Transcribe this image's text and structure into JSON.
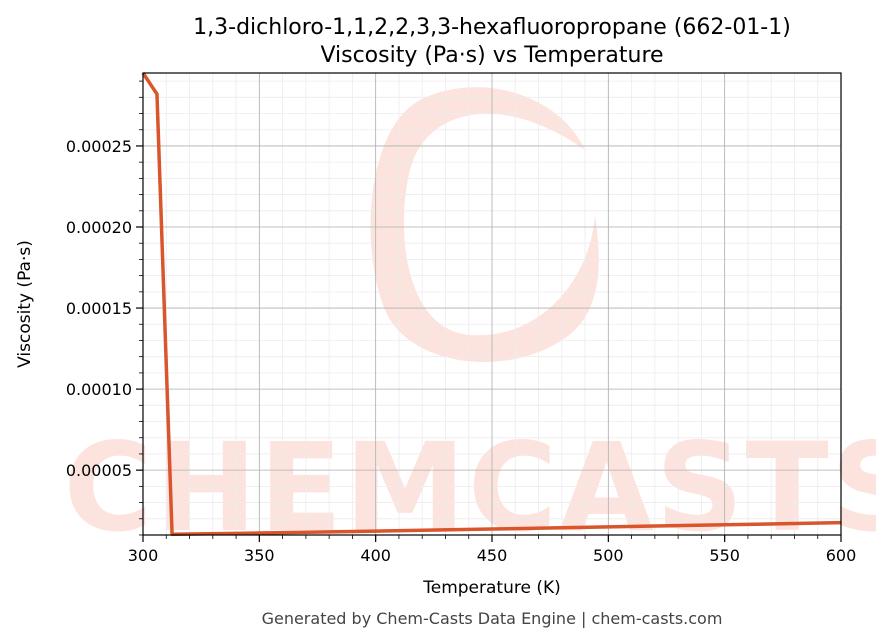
{
  "chart_data": {
    "type": "line",
    "title": "1,3-dichloro-1,1,2,2,3,3-hexafluoropropane (662-01-1)",
    "subtitle": "Viscosity (Pa·s) vs Temperature",
    "xlabel": "Temperature (K)",
    "ylabel": "Viscosity (Pa·s)",
    "xlim": [
      300,
      600
    ],
    "ylim": [
      1e-05,
      0.000295
    ],
    "x_ticks": [
      300,
      350,
      400,
      450,
      500,
      550,
      600
    ],
    "x_tick_labels": [
      "300",
      "350",
      "400",
      "450",
      "500",
      "550",
      "600"
    ],
    "y_ticks": [
      5e-05,
      0.0001,
      0.00015,
      0.0002,
      0.00025
    ],
    "y_tick_labels": [
      "0.00005",
      "0.00010",
      "0.00015",
      "0.00020",
      "0.00025"
    ],
    "grid": true,
    "legend": "none",
    "series": [
      {
        "color": "#d9552b",
        "x": [
          300,
          306,
          312.5,
          350,
          400,
          450,
          500,
          550,
          600
        ],
        "y": [
          0.000295,
          0.000282,
          1.05e-05,
          1.12e-05,
          1.24e-05,
          1.37e-05,
          1.5e-05,
          1.63e-05,
          1.76e-05
        ]
      }
    ]
  },
  "watermark": {
    "text": "CHEMCASTS",
    "color": "#fde3de"
  },
  "footer": "Generated by Chem-Casts Data Engine | chem-casts.com"
}
